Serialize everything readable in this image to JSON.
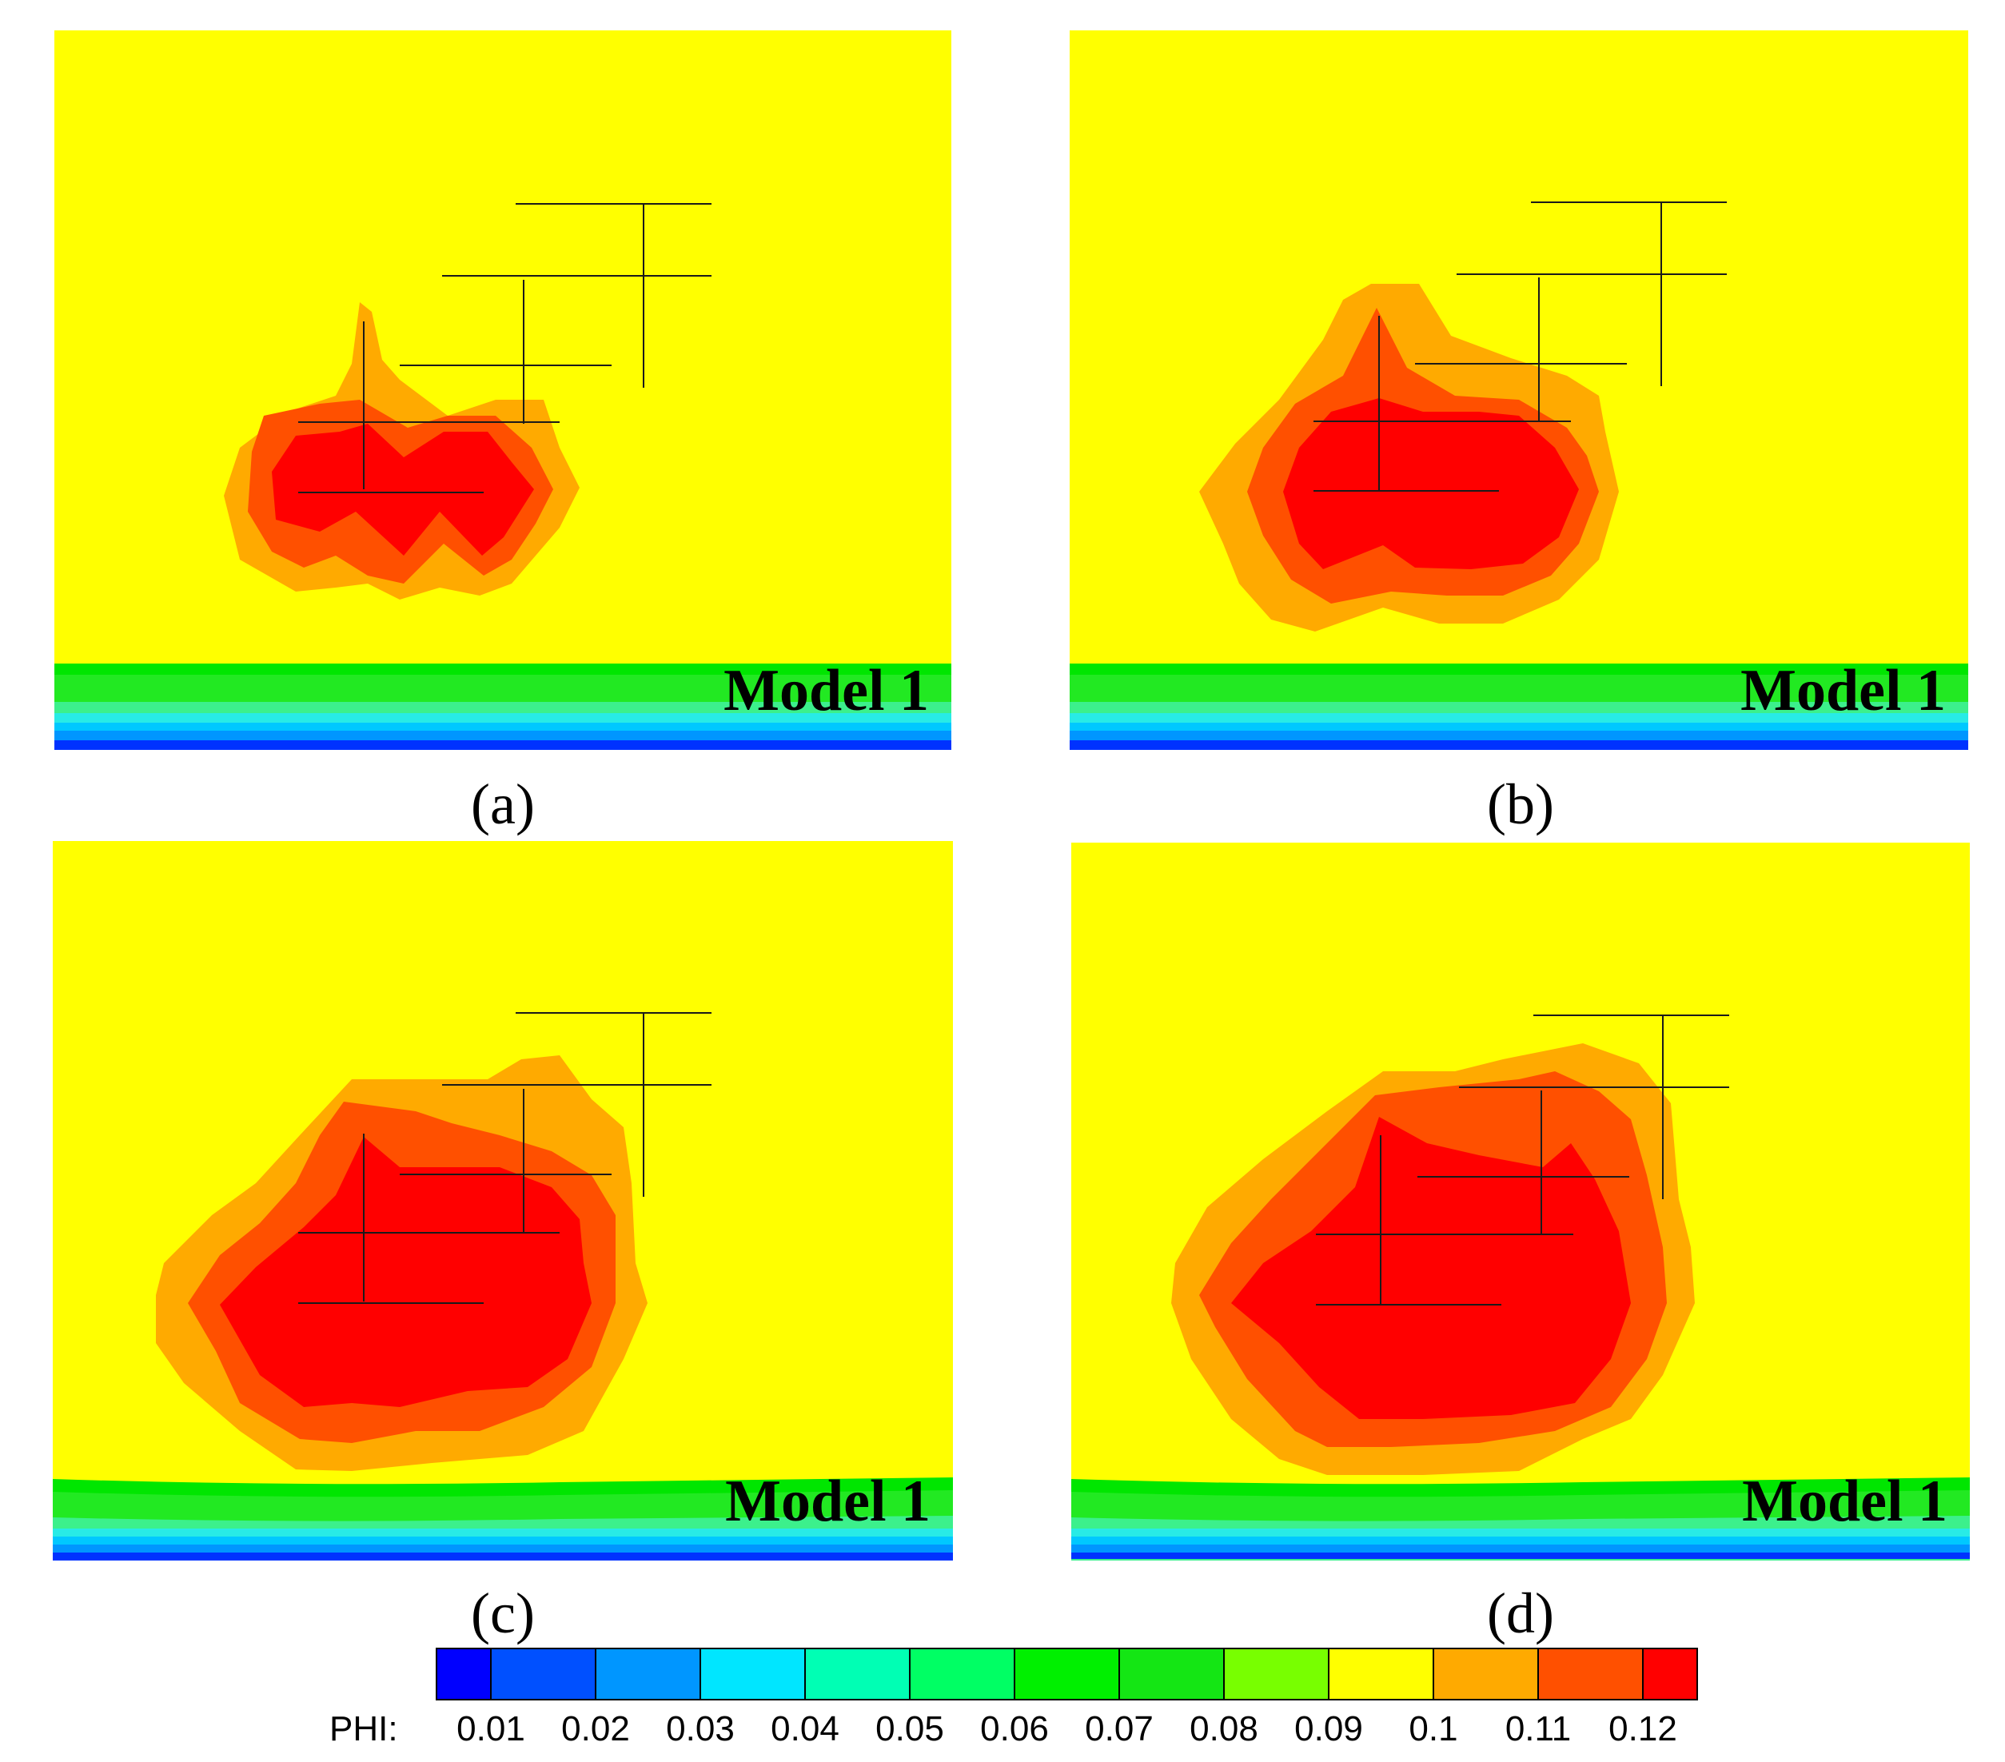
{
  "figure": {
    "panels": [
      {
        "id": "a",
        "label": "(a)",
        "model_label": "Model 1"
      },
      {
        "id": "b",
        "label": "(b)",
        "model_label": "Model 1"
      },
      {
        "id": "c",
        "label": "(c)",
        "model_label": "Model 1"
      },
      {
        "id": "d",
        "label": "(d)",
        "model_label": "Model 1"
      }
    ]
  },
  "chart_data": {
    "type": "heatmap",
    "variable": "PHI",
    "legend": {
      "title": "PHI:",
      "placement": "bottom",
      "levels": [
        0.01,
        0.02,
        0.03,
        0.04,
        0.05,
        0.06,
        0.07,
        0.08,
        0.09,
        0.1,
        0.11,
        0.12
      ],
      "tick_labels": [
        "0.01",
        "0.02",
        "0.03",
        "0.04",
        "0.05",
        "0.06",
        "0.07",
        "0.08",
        "0.09",
        "0.1",
        "0.11",
        "0.12"
      ],
      "colors": [
        "#0000ff",
        "#0050ff",
        "#0096ff",
        "#00e6ff",
        "#00ffb4",
        "#00ff64",
        "#00f000",
        "#14e614",
        "#78ff00",
        "#ffff00",
        "#ffaa00",
        "#ff5000",
        "#ff0000"
      ]
    },
    "background_level_color": "#ffff00",
    "plume_band_colors": [
      "#ffaa00",
      "#ff5000",
      "#ff0000"
    ],
    "bottom_band_colors": [
      "#00e600",
      "#28f050",
      "#3cf0a0",
      "#28ebe6",
      "#00b4ff",
      "#0064ff",
      "#0000ff"
    ]
  }
}
